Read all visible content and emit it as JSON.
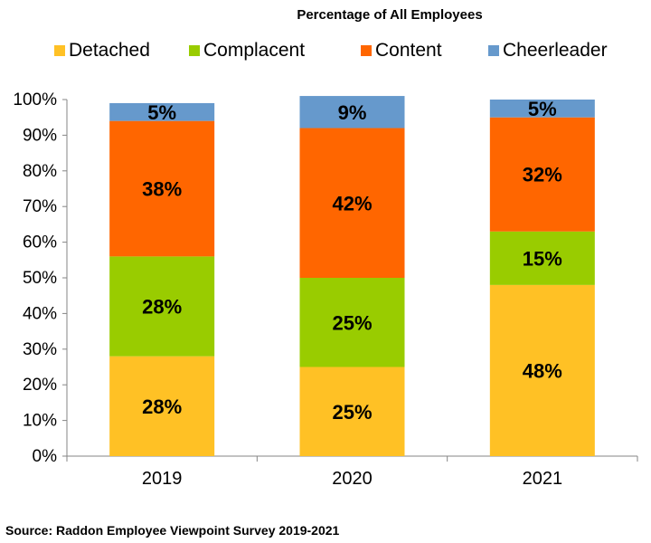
{
  "chart_data": {
    "type": "bar",
    "stacked": true,
    "title": "Percentage of All Employees",
    "categories": [
      "2019",
      "2020",
      "2021"
    ],
    "series": [
      {
        "name": "Detached",
        "color": "#FFC125",
        "values": [
          28,
          25,
          48
        ],
        "labels": [
          "28%",
          "25%",
          "48%"
        ]
      },
      {
        "name": "Complacent",
        "color": "#99CC00",
        "values": [
          28,
          25,
          15
        ],
        "labels": [
          "28%",
          "25%",
          "15%"
        ]
      },
      {
        "name": "Content",
        "color": "#FF6600",
        "values": [
          38,
          42,
          32
        ],
        "labels": [
          "38%",
          "42%",
          "32%"
        ]
      },
      {
        "name": "Cheerleader",
        "color": "#6699CC",
        "values": [
          5,
          9,
          5
        ],
        "labels": [
          "5%",
          "9%",
          "5%"
        ]
      }
    ],
    "ylim": [
      0,
      100
    ],
    "yticks": [
      "0%",
      "10%",
      "20%",
      "30%",
      "40%",
      "50%",
      "60%",
      "70%",
      "80%",
      "90%",
      "100%"
    ],
    "xlabel": "",
    "ylabel": "",
    "legend": "top",
    "grid": false
  },
  "source_note": "Source: Raddon Employee Viewpoint Survey 2019-2021"
}
